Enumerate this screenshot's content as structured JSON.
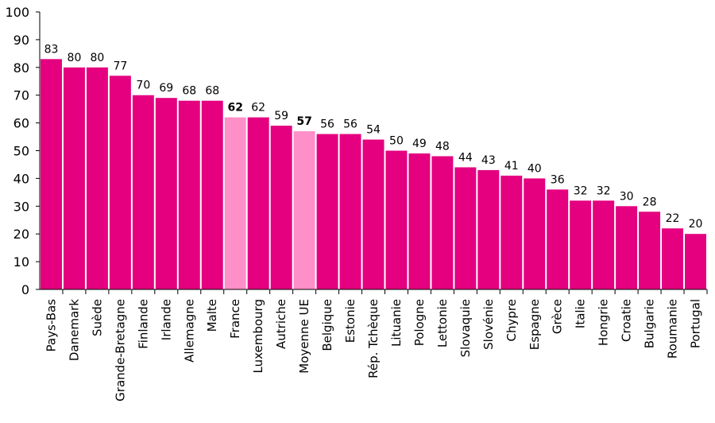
{
  "chart_data": {
    "type": "bar",
    "categories": [
      "Pays-Bas",
      "Danemark",
      "Suède",
      "Grande-Bretagne",
      "Finlande",
      "Irlande",
      "Allemagne",
      "Malte",
      "France",
      "Luxembourg",
      "Autriche",
      "Moyenne UE",
      "Belgique",
      "Estonie",
      "Rép. Tchèque",
      "Lituanie",
      "Pologne",
      "Lettonie",
      "Slovaquie",
      "Slovénie",
      "Chypre",
      "Espagne",
      "Grèce",
      "Italie",
      "Hongrie",
      "Croatie",
      "Bulgarie",
      "Roumanie",
      "Portugal"
    ],
    "values": [
      83,
      80,
      80,
      77,
      70,
      69,
      68,
      68,
      62,
      62,
      59,
      57,
      56,
      56,
      54,
      50,
      49,
      48,
      44,
      43,
      41,
      40,
      36,
      32,
      32,
      30,
      28,
      22,
      20
    ],
    "highlighted": [
      "France",
      "Moyenne UE"
    ],
    "ylim": [
      0,
      100
    ],
    "yticks": [
      0,
      10,
      20,
      30,
      40,
      50,
      60,
      70,
      80,
      90,
      100
    ],
    "grid": false,
    "colors": {
      "bar": "#e4007f",
      "highlight": "#ff8fc8",
      "axis": "#000000"
    },
    "title": "",
    "xlabel": "",
    "ylabel": ""
  }
}
